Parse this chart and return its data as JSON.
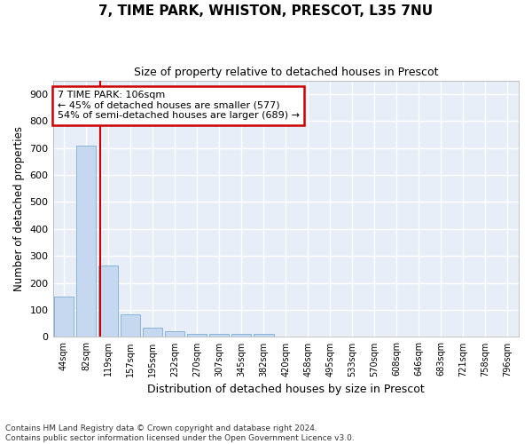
{
  "title_line1": "7, TIME PARK, WHISTON, PRESCOT, L35 7NU",
  "title_line2": "Size of property relative to detached houses in Prescot",
  "xlabel": "Distribution of detached houses by size in Prescot",
  "ylabel": "Number of detached properties",
  "bin_labels": [
    "44sqm",
    "82sqm",
    "119sqm",
    "157sqm",
    "195sqm",
    "232sqm",
    "270sqm",
    "307sqm",
    "345sqm",
    "382sqm",
    "420sqm",
    "458sqm",
    "495sqm",
    "533sqm",
    "570sqm",
    "608sqm",
    "646sqm",
    "683sqm",
    "721sqm",
    "758sqm",
    "796sqm"
  ],
  "bar_values": [
    148,
    710,
    265,
    85,
    35,
    22,
    12,
    12,
    10,
    10,
    0,
    0,
    0,
    0,
    0,
    0,
    0,
    0,
    0,
    0,
    0
  ],
  "bar_color": "#c5d8f0",
  "bar_edge_color": "#7badd4",
  "red_line_x": 1.65,
  "annotation_text": "7 TIME PARK: 106sqm\n← 45% of detached houses are smaller (577)\n54% of semi-detached houses are larger (689) →",
  "annotation_box_color": "#ffffff",
  "annotation_border_color": "#cc0000",
  "ylim": [
    0,
    950
  ],
  "yticks": [
    0,
    100,
    200,
    300,
    400,
    500,
    600,
    700,
    800,
    900
  ],
  "background_color": "#e8eef8",
  "fig_background_color": "#ffffff",
  "grid_color": "#ffffff",
  "footnote": "Contains HM Land Registry data © Crown copyright and database right 2024.\nContains public sector information licensed under the Open Government Licence v3.0."
}
